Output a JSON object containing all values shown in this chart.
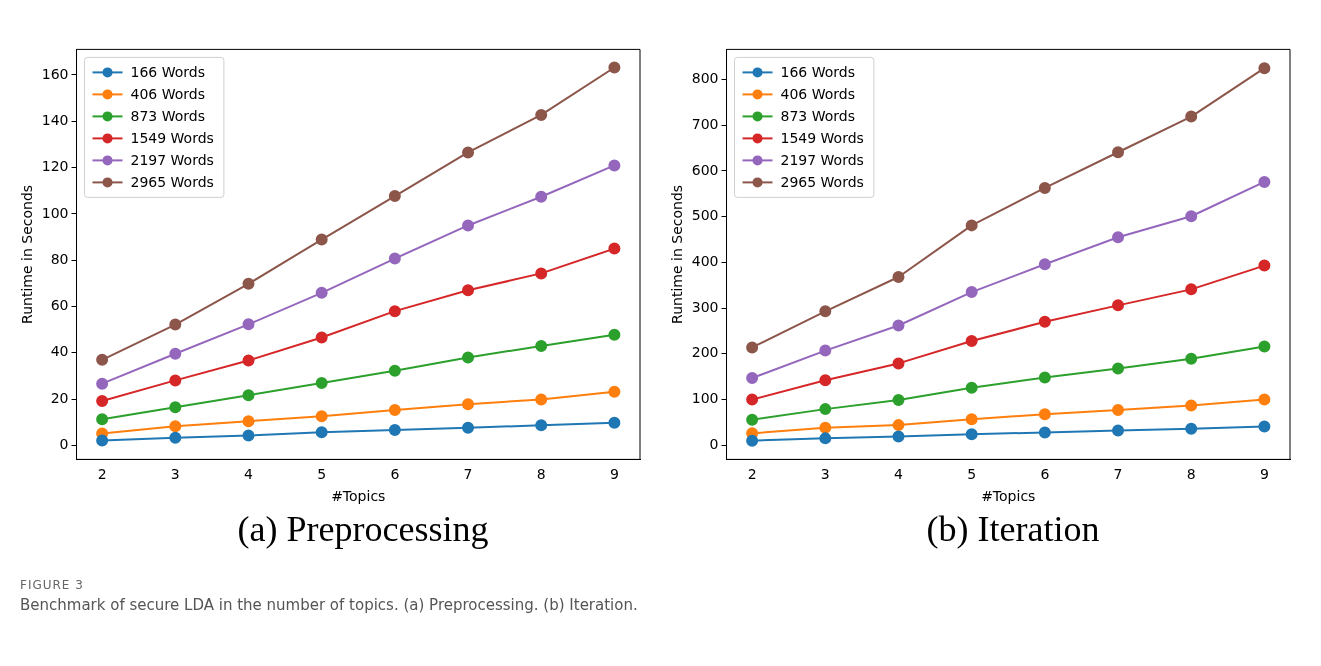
{
  "chart_data": [
    {
      "type": "line",
      "title": "(a) Preprocessing",
      "xlabel": "#Topics",
      "ylabel": "Runtime in Seconds",
      "x": [
        2,
        3,
        4,
        5,
        6,
        7,
        8,
        9
      ],
      "xlim": [
        1.65,
        9.35
      ],
      "xticks": [
        2,
        3,
        4,
        5,
        6,
        7,
        8,
        9
      ],
      "ylim": [
        -6,
        171
      ],
      "yticks": [
        0,
        20,
        40,
        60,
        80,
        100,
        120,
        140,
        160
      ],
      "legend": "top left",
      "marker": "circle",
      "grid": false,
      "annotations": [
        "FIGURE 3",
        "Benchmark of secure LDA in the number of topics. (a) Preprocessing. (b) Iteration."
      ],
      "series": [
        {
          "name": "166 Words",
          "color": "#1f77b4",
          "values": [
            2.2,
            3.3,
            4.3,
            5.7,
            6.7,
            7.7,
            8.7,
            9.8
          ]
        },
        {
          "name": "406 Words",
          "color": "#ff7f0e",
          "values": [
            5.2,
            8.3,
            10.5,
            12.6,
            15.3,
            17.8,
            19.9,
            23.2
          ]
        },
        {
          "name": "873 Words",
          "color": "#2ca02c",
          "values": [
            11.3,
            16.5,
            21.7,
            27.0,
            32.3,
            38.0,
            43.0,
            47.8
          ]
        },
        {
          "name": "1549 Words",
          "color": "#d62728",
          "values": [
            19.2,
            28.1,
            36.7,
            46.6,
            58.0,
            67.0,
            74.3,
            85.0
          ]
        },
        {
          "name": "2197 Words",
          "color": "#9467bd",
          "values": [
            26.7,
            39.6,
            52.3,
            65.9,
            80.7,
            95.0,
            107.4,
            120.9
          ]
        },
        {
          "name": "2965 Words",
          "color": "#8c564b",
          "values": [
            37.0,
            52.2,
            69.8,
            88.9,
            107.7,
            126.5,
            142.7,
            163.2
          ]
        }
      ]
    },
    {
      "type": "line",
      "title": "(b) Iteration",
      "xlabel": "#Topics",
      "ylabel": "Runtime in Seconds",
      "x": [
        2,
        3,
        4,
        5,
        6,
        7,
        8,
        9
      ],
      "xlim": [
        1.65,
        9.35
      ],
      "xticks": [
        2,
        3,
        4,
        5,
        6,
        7,
        8,
        9
      ],
      "ylim": [
        -31,
        866
      ],
      "yticks": [
        0,
        100,
        200,
        300,
        400,
        500,
        600,
        700,
        800
      ],
      "legend": "top left",
      "marker": "circle",
      "grid": false,
      "series": [
        {
          "name": "166 Words",
          "color": "#1f77b4",
          "values": [
            10,
            15,
            19,
            24,
            28,
            32,
            36,
            41
          ]
        },
        {
          "name": "406 Words",
          "color": "#ff7f0e",
          "values": [
            26,
            38,
            44,
            57,
            68,
            77,
            87,
            100
          ]
        },
        {
          "name": "873 Words",
          "color": "#2ca02c",
          "values": [
            56,
            79,
            99,
            126,
            148,
            168,
            189,
            216
          ]
        },
        {
          "name": "1549 Words",
          "color": "#d62728",
          "values": [
            100,
            142,
            179,
            228,
            270,
            306,
            341,
            393
          ]
        },
        {
          "name": "2197 Words",
          "color": "#9467bd",
          "values": [
            147,
            207,
            262,
            335,
            396,
            455,
            501,
            576
          ]
        },
        {
          "name": "2965 Words",
          "color": "#8c564b",
          "values": [
            214,
            293,
            368,
            481,
            563,
            641,
            719,
            825
          ]
        }
      ]
    }
  ]
}
